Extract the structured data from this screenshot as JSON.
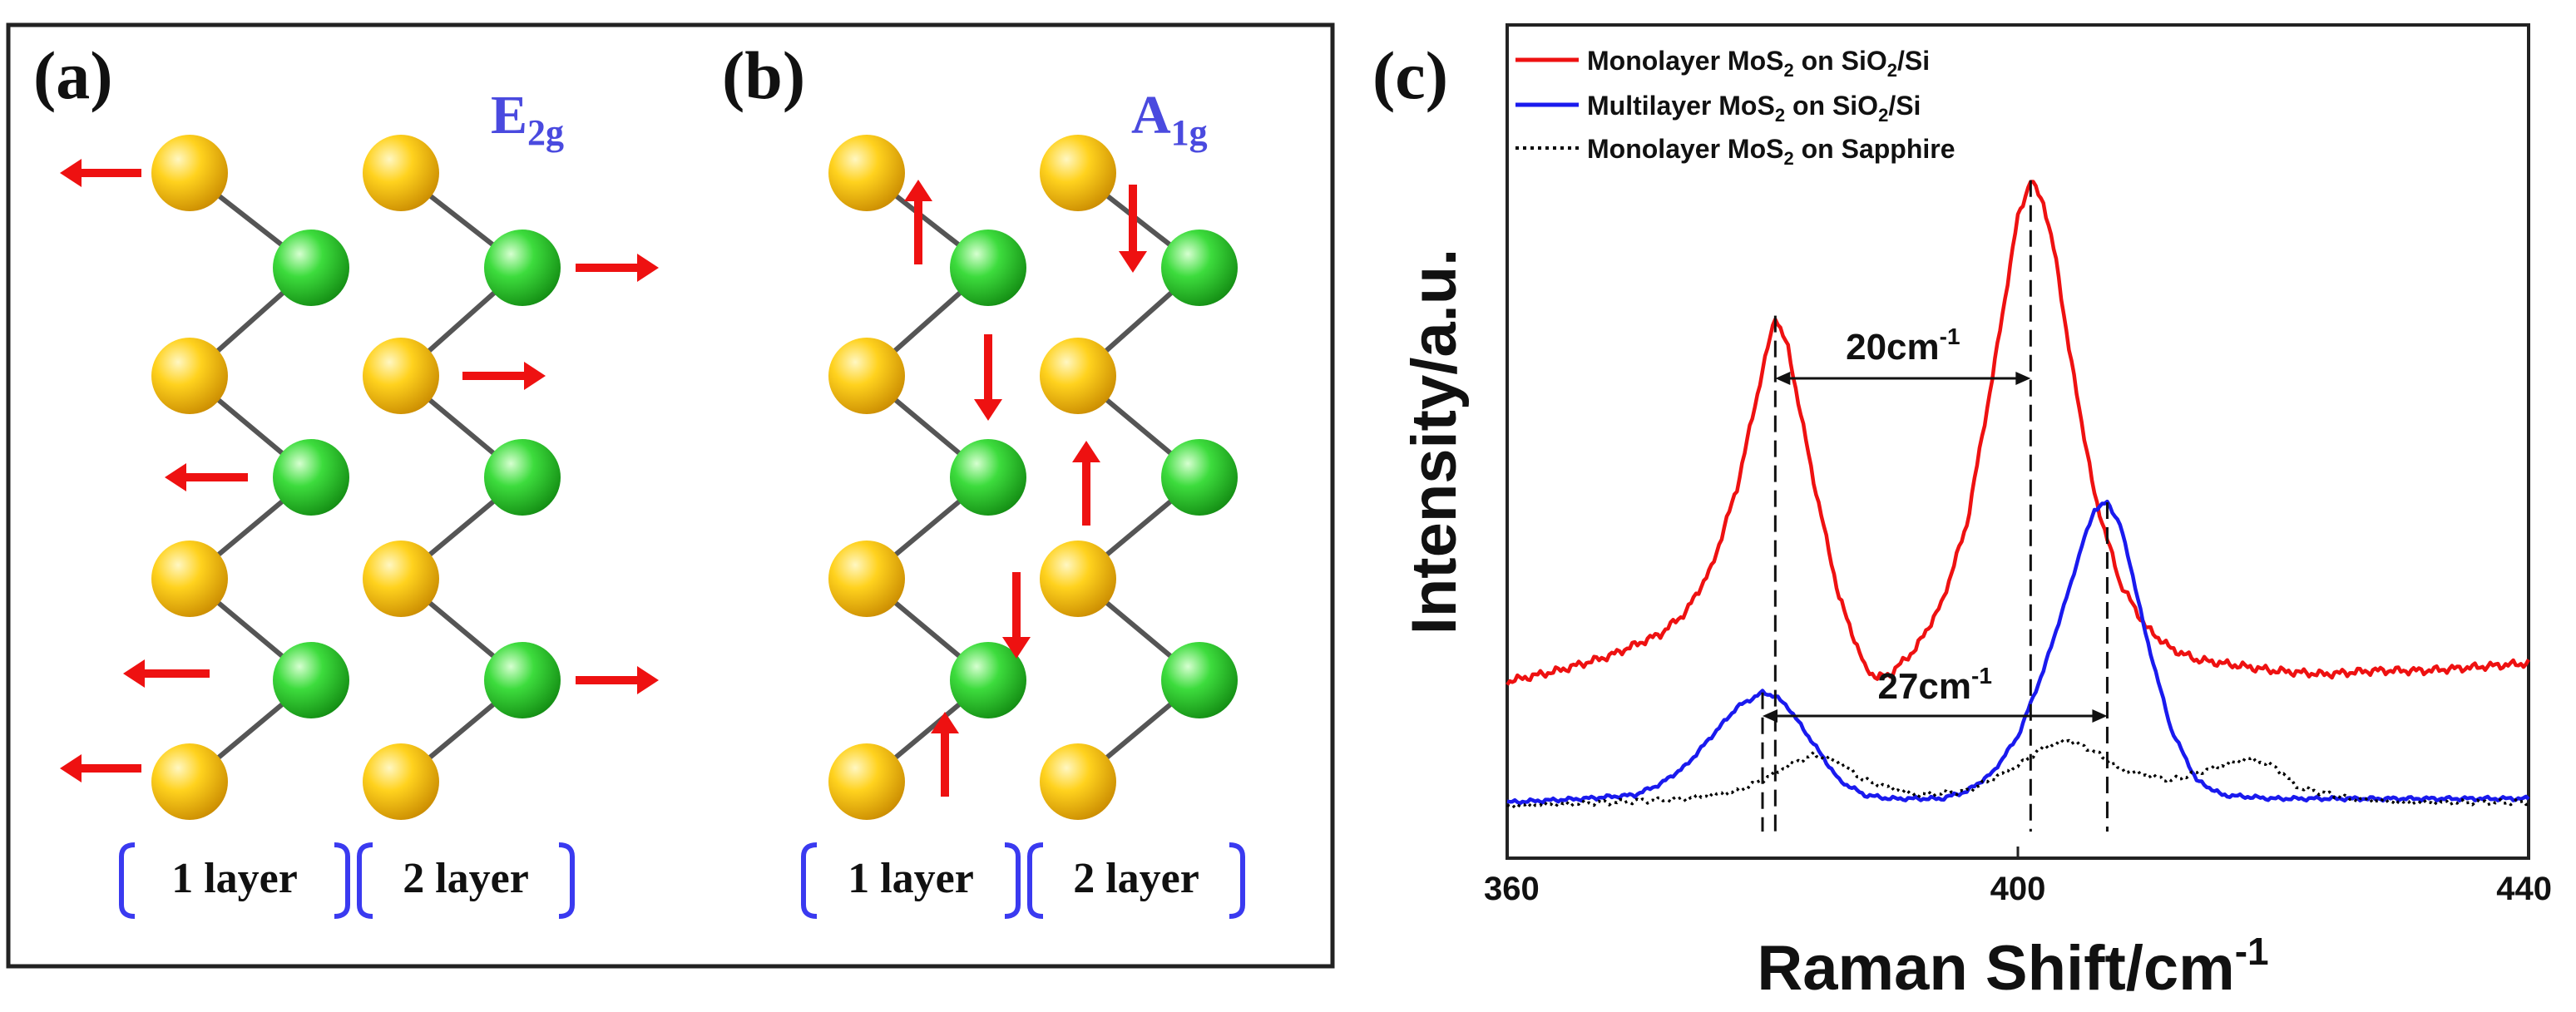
{
  "colors": {
    "bond": "#555555",
    "arrow": "#ee1111",
    "mode_label": "#4a4adf",
    "bracket": "#3a3af0",
    "sulfur": "#f5b800",
    "molybdenum": "#22c022",
    "red_series": "#ee1111",
    "blue_series": "#1a1aee",
    "black_series": "#000000"
  },
  "panel_a": {
    "label": "(a)",
    "mode": "E",
    "mode_sub": "2g",
    "layer_labels": [
      "1 layer",
      "2 layer"
    ]
  },
  "panel_b": {
    "label": "(b)",
    "mode": "A",
    "mode_sub": "1g",
    "layer_labels": [
      "1 layer",
      "2 layer"
    ]
  },
  "chart_data": {
    "panel_label": "(c)",
    "type": "line",
    "xlabel": "Raman Shift/cm",
    "xlabel_sup": "-1",
    "ylabel": "Intensity/a.u.",
    "xlim": [
      360,
      440
    ],
    "ylim": [
      0,
      1
    ],
    "xticks": [
      "360",
      "400",
      "440"
    ],
    "legend_position": "top-left",
    "legend": [
      {
        "pre": "Monolayer MoS",
        "sub": "2",
        "post": " on SiO",
        "sub2": "2",
        "post2": "/Si",
        "style": "solid",
        "color": "#ee1111"
      },
      {
        "pre": "Multilayer MoS",
        "sub": "2",
        "post": " on SiO",
        "sub2": "2",
        "post2": "/Si",
        "style": "solid",
        "color": "#1a1aee"
      },
      {
        "pre": "Monolayer MoS",
        "sub": "2",
        "post": " on Sapphire",
        "sub2": "",
        "post2": "",
        "style": "dotted",
        "color": "#000000"
      }
    ],
    "series": [
      {
        "name": "Monolayer MoS2 on SiO2/Si",
        "x": [
          360,
          364,
          368,
          372,
          374,
          376,
          378,
          380,
          381,
          382,
          383,
          384,
          386,
          388,
          389,
          390,
          392,
          394,
          396,
          398,
          400,
          401,
          402,
          403,
          404,
          406,
          408,
          410,
          412,
          414,
          416,
          418,
          420,
          424,
          428,
          432,
          436,
          440
        ],
        "y": [
          0.205,
          0.22,
          0.24,
          0.27,
          0.3,
          0.36,
          0.47,
          0.63,
          0.705,
          0.66,
          0.57,
          0.48,
          0.32,
          0.225,
          0.21,
          0.215,
          0.25,
          0.31,
          0.42,
          0.62,
          0.84,
          0.89,
          0.86,
          0.78,
          0.66,
          0.46,
          0.34,
          0.28,
          0.25,
          0.235,
          0.23,
          0.225,
          0.22,
          0.215,
          0.22,
          0.22,
          0.225,
          0.23
        ]
      },
      {
        "name": "Multilayer MoS2 on SiO2/Si",
        "x": [
          360,
          366,
          370,
          372,
          374,
          376,
          378,
          379,
          380,
          381,
          382,
          384,
          386,
          388,
          390,
          394,
          396,
          398,
          400,
          402,
          404,
          405,
          406,
          407,
          408,
          409,
          410,
          412,
          414,
          416,
          420,
          428,
          434,
          440
        ],
        "y": [
          0.04,
          0.045,
          0.05,
          0.065,
          0.09,
          0.13,
          0.17,
          0.18,
          0.19,
          0.185,
          0.17,
          0.12,
          0.07,
          0.05,
          0.045,
          0.045,
          0.055,
          0.08,
          0.13,
          0.22,
          0.33,
          0.39,
          0.44,
          0.45,
          0.42,
          0.35,
          0.27,
          0.14,
          0.07,
          0.05,
          0.045,
          0.045,
          0.045,
          0.045
        ]
      },
      {
        "name": "Monolayer MoS2 on Sapphire",
        "x": [
          360,
          368,
          374,
          378,
          380,
          382,
          384,
          386,
          388,
          392,
          396,
          400,
          402,
          404,
          406,
          408,
          412,
          416,
          418,
          420,
          422,
          426,
          430,
          436,
          440
        ],
        "y": [
          0.035,
          0.04,
          0.045,
          0.055,
          0.07,
          0.09,
          0.105,
          0.095,
          0.07,
          0.05,
          0.055,
          0.09,
          0.115,
          0.125,
          0.11,
          0.085,
          0.07,
          0.09,
          0.1,
          0.09,
          0.06,
          0.045,
          0.04,
          0.04,
          0.04
        ]
      }
    ],
    "annotations": [
      {
        "text": "20cm",
        "sup": "-1",
        "x1": 381,
        "x2": 401
      },
      {
        "text": "27cm",
        "sup": "-1",
        "x1": 380,
        "x2": 407
      }
    ]
  }
}
